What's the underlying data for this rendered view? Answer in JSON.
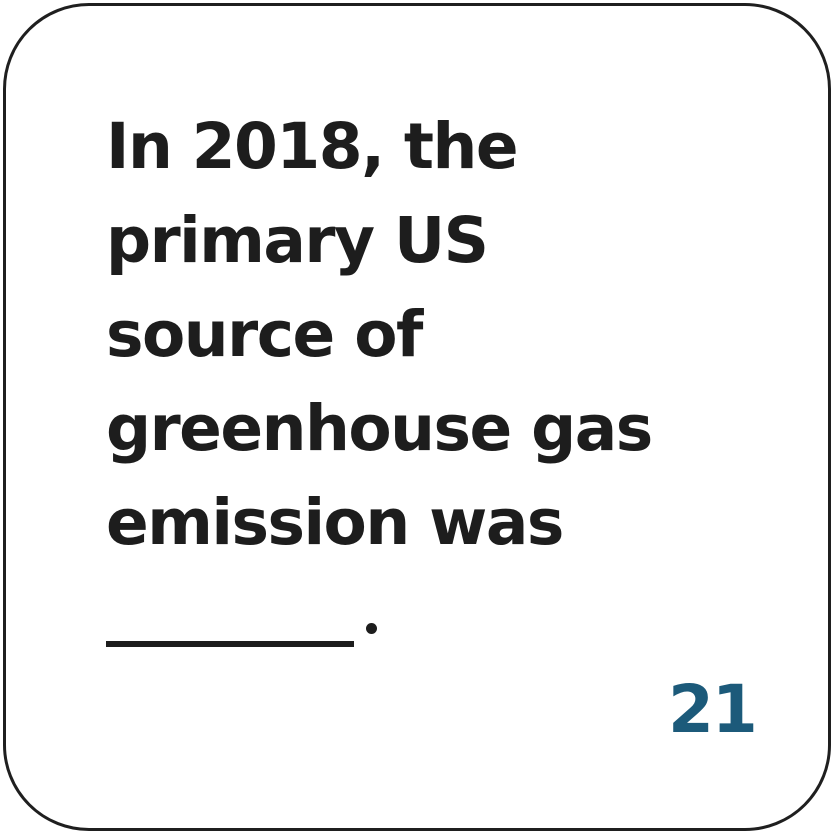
{
  "card": {
    "question_lines": [
      "In 2018, the",
      "primary US",
      "source of",
      "greenhouse gas",
      "emission was"
    ],
    "number": "21",
    "colors": {
      "text": "#1d1d1d",
      "number": "#1c5a7a",
      "border": "#1f1f1f",
      "background": "#ffffff"
    }
  }
}
